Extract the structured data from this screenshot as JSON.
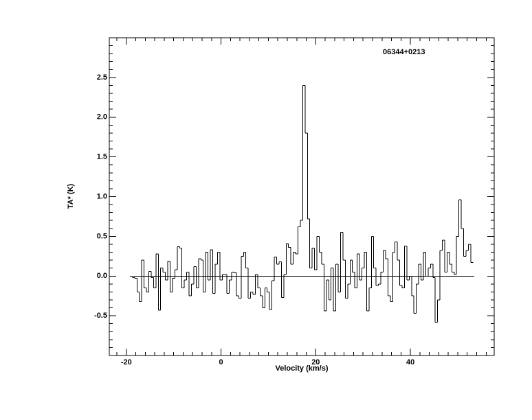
{
  "chart_data": {
    "type": "step",
    "title": "06344+0213",
    "x_label": "Velocity (km/s)",
    "y_label": "TA* (K)",
    "xlim": [
      -23.6,
      57.7
    ],
    "ylim": [
      -1.0,
      3.0
    ],
    "xticks": [
      -20,
      0,
      20,
      40
    ],
    "yticks": [
      -0.5,
      {
        "value": 0,
        "label": "0.0"
      },
      0.5,
      {
        "value": 1,
        "label": "1.0"
      },
      1.5,
      {
        "value": 2,
        "label": "2.0"
      },
      2.5
    ],
    "color": "#000000",
    "x": [
      -18.5,
      -18,
      -17.5,
      -17,
      -16.5,
      -16,
      -15.5,
      -15,
      -14.5,
      -14,
      -13.5,
      -13,
      -12.5,
      -12,
      -11.5,
      -11,
      -10.5,
      -10,
      -9.5,
      -9,
      -8.5,
      -8,
      -7.5,
      -7,
      -6.5,
      -6,
      -5.5,
      -5,
      -4.5,
      -4,
      -3.5,
      -3,
      -2.5,
      -2,
      -1.5,
      -1,
      -0.5,
      0,
      0.5,
      1,
      1.5,
      2,
      2.5,
      3,
      3.5,
      4,
      4.5,
      5,
      5.5,
      6,
      6.5,
      7,
      7.5,
      8,
      8.5,
      9,
      9.5,
      10,
      10.5,
      11,
      11.5,
      12,
      12.5,
      13,
      13.5,
      14,
      14.5,
      15,
      15.5,
      16,
      16.5,
      17,
      17.5,
      18,
      18.5,
      19,
      19.5,
      20,
      20.5,
      21,
      21.5,
      22,
      22.5,
      23,
      23.5,
      24,
      24.5,
      25,
      25.5,
      26,
      26.5,
      27,
      27.5,
      28,
      28.5,
      29,
      29.5,
      30,
      30.5,
      31,
      31.5,
      32,
      32.5,
      33,
      33.5,
      34,
      34.5,
      35,
      35.5,
      36,
      36.5,
      37,
      37.5,
      38,
      38.5,
      39,
      39.5,
      40,
      40.5,
      41,
      41.5,
      42,
      42.5,
      43,
      43.5,
      44,
      44.5,
      45,
      45.5,
      46,
      46.5,
      47,
      47.5,
      48,
      48.5,
      49,
      49.5,
      50,
      50.5,
      51,
      51.5,
      52,
      52.5,
      53
    ],
    "values": [
      -0.02,
      -0.03,
      -0.2,
      -0.32,
      0.2,
      -0.15,
      -0.2,
      0.06,
      -0.02,
      -0.15,
      0.28,
      -0.43,
      0.1,
      0.05,
      -0.05,
      0.19,
      -0.2,
      -0.03,
      0.08,
      0.37,
      0.35,
      -0.15,
      -0.05,
      0.05,
      -0.25,
      -0.1,
      0.12,
      -0.15,
      0.22,
      0.2,
      -0.2,
      0.3,
      -0.05,
      0.33,
      -0.22,
      0.15,
      0.3,
      -0.05,
      0.02,
      0.02,
      -0.22,
      -0.05,
      0.05,
      0.04,
      -0.25,
      -0.28,
      0.25,
      0.3,
      0.1,
      -0.28,
      -0.2,
      -0.23,
      0.02,
      -0.15,
      -0.25,
      -0.4,
      -0.15,
      -0.2,
      -0.42,
      -0.06,
      0.24,
      0.15,
      0.18,
      -0.27,
      0.02,
      0.41,
      0.36,
      0.15,
      0.3,
      0.28,
      0.62,
      0.7,
      2.4,
      1.8,
      0.72,
      0.1,
      0.35,
      0.08,
      0.5,
      0.3,
      0.15,
      -0.44,
      -0.05,
      -0.3,
      0.1,
      -0.44,
      0.15,
      -0.2,
      0.55,
      0.2,
      -0.28,
      -0.1,
      0.2,
      0.05,
      -0.15,
      0.28,
      -0.05,
      0.1,
      0.3,
      -0.44,
      -0.15,
      0.5,
      0.1,
      -0.12,
      -0.1,
      0.05,
      0.32,
      0.22,
      -0.25,
      -0.32,
      0.3,
      0.43,
      0.2,
      -0.12,
      -0.15,
      0.38,
      -0.05,
      0.0,
      -0.25,
      -0.47,
      -0.1,
      0.15,
      -0.05,
      0.3,
      0.0,
      0.1,
      0.15,
      -0.02,
      -0.58,
      -0.3,
      0.32,
      0.45,
      0.05,
      0.3,
      0.15,
      0.05,
      0.02,
      0.5,
      0.96,
      0.6,
      0.25,
      0.32,
      0.4,
      0.17
    ]
  }
}
